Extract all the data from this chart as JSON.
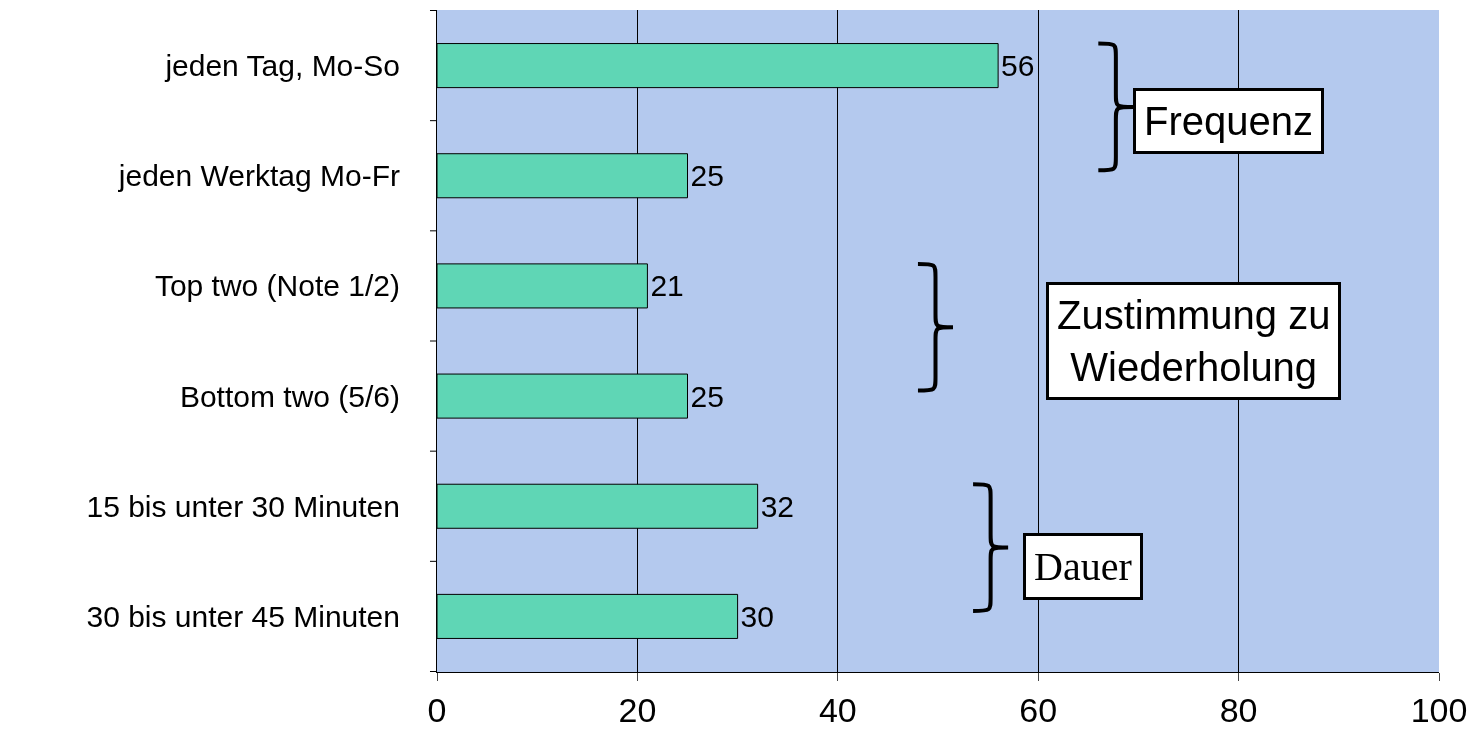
{
  "chart_data": {
    "type": "bar",
    "orientation": "horizontal",
    "categories": [
      "jeden Tag, Mo-So",
      "jeden Werktag Mo-Fr",
      "Top two (Note 1/2)",
      "Bottom two (5/6)",
      "15 bis unter 30 Minuten",
      "30 bis unter 45 Minuten"
    ],
    "values": [
      56,
      25,
      21,
      25,
      32,
      30
    ],
    "color": "#5fd6b5",
    "data_labels": true,
    "xlim": [
      0,
      100
    ],
    "xticks": [
      0,
      20,
      40,
      60,
      80,
      100
    ],
    "grid": "x",
    "legend": false,
    "annotations": [
      "Frequenz",
      "Zustimmung zu Wiederholung",
      "Dauer"
    ]
  }
}
